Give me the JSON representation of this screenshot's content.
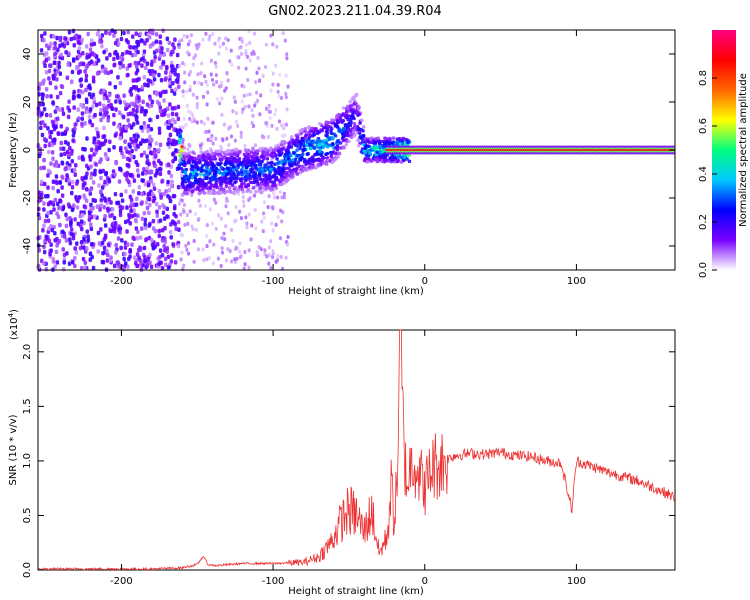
{
  "title": "GN02.2023.211.04.39.R04",
  "chart_data": [
    {
      "type": "heatmap",
      "xlabel": "Height of straight line (km)",
      "ylabel": "Frequency (Hz)",
      "xlim": [
        -255,
        165
      ],
      "ylim": [
        -50,
        50
      ],
      "xticks": [
        -200,
        -100,
        0,
        100
      ],
      "xtick_labels": [
        "-200",
        "-100",
        "0",
        "100"
      ],
      "yticks": [
        -40,
        -20,
        0,
        20,
        40
      ],
      "ytick_labels": [
        "-40",
        "-20",
        "0",
        "20",
        "40"
      ],
      "colorbar": {
        "label": "Normalized spectral amplitude",
        "range": [
          0,
          1
        ],
        "ticks": [
          0.0,
          0.2,
          0.4,
          0.6,
          0.8
        ],
        "tick_labels": [
          "0.0",
          "0.2",
          "0.4",
          "0.6",
          "0.8"
        ],
        "colors": [
          "#ffffff",
          "#7a00ff",
          "#0000ff",
          "#00c8ff",
          "#00ff80",
          "#ffff00",
          "#ff6600",
          "#ff0000",
          "#ff0080"
        ]
      },
      "ridge": {
        "description_points": [
          {
            "x": -160,
            "f": -10,
            "amp": 0.4
          },
          {
            "x": -130,
            "f": -9,
            "amp": 0.35
          },
          {
            "x": -100,
            "f": -8,
            "amp": 0.35
          },
          {
            "x": -80,
            "f": 0,
            "amp": 0.4
          },
          {
            "x": -60,
            "f": 4,
            "amp": 0.45
          },
          {
            "x": -45,
            "f": 15,
            "amp": 0.2
          },
          {
            "x": -40,
            "f": 0,
            "amp": 0.45
          },
          {
            "x": -25,
            "f": 0,
            "amp": 0.55
          },
          {
            "x": -10,
            "f": 0,
            "amp": 0.85
          },
          {
            "x": 0,
            "f": 0,
            "amp": 0.9
          },
          {
            "x": 85,
            "f": 0,
            "amp": 0.9
          },
          {
            "x": 165,
            "f": 0,
            "amp": 0.9
          }
        ]
      },
      "noise_region": {
        "x_from": -255,
        "x_to": -162,
        "density": "high"
      },
      "sparse_region": {
        "x_from": -162,
        "x_to": -90,
        "density": "low"
      }
    },
    {
      "type": "line",
      "xlabel": "Height of straight line (km)",
      "ylabel": "SNR (10 * v/v)",
      "y_multiplier_label": "(x10",
      "y_multiplier_exp": "4",
      "y_multiplier_close": ")",
      "xlim": [
        -255,
        165
      ],
      "ylim": [
        0,
        2.2
      ],
      "xticks": [
        -200,
        -100,
        0,
        100
      ],
      "xtick_labels": [
        "-200",
        "-100",
        "0",
        "100"
      ],
      "yticks": [
        0.0,
        0.5,
        1.0,
        1.5,
        2.0
      ],
      "ytick_labels": [
        "0.0",
        "0.5",
        "1.0",
        "1.5",
        "2.0"
      ],
      "color": "#ee3030",
      "series": [
        {
          "x": [
            -255,
            -220,
            -180,
            -160,
            -150,
            -146,
            -143,
            -138,
            -120,
            -100,
            -80,
            -70,
            -62,
            -55,
            -50,
            -45,
            -40,
            -35,
            -30,
            -25,
            -22,
            -20,
            -18,
            -16,
            -14,
            -12,
            -10,
            -8,
            -5,
            0,
            5,
            10,
            15,
            20,
            30,
            40,
            50,
            60,
            70,
            80,
            90,
            97,
            100,
            110,
            120,
            130,
            140,
            150,
            160,
            165
          ],
          "y": [
            0.01,
            0.01,
            0.01,
            0.02,
            0.05,
            0.13,
            0.05,
            0.04,
            0.06,
            0.06,
            0.07,
            0.12,
            0.25,
            0.45,
            0.55,
            0.5,
            0.35,
            0.55,
            0.15,
            0.3,
            0.75,
            0.45,
            0.9,
            2.2,
            1.2,
            0.8,
            0.9,
            1.05,
            0.95,
            0.75,
            0.95,
            0.98,
            1.02,
            1.05,
            1.07,
            1.06,
            1.08,
            1.05,
            1.04,
            1.0,
            0.98,
            0.55,
            1.0,
            0.95,
            0.9,
            0.86,
            0.82,
            0.76,
            0.7,
            0.66
          ]
        }
      ]
    }
  ]
}
